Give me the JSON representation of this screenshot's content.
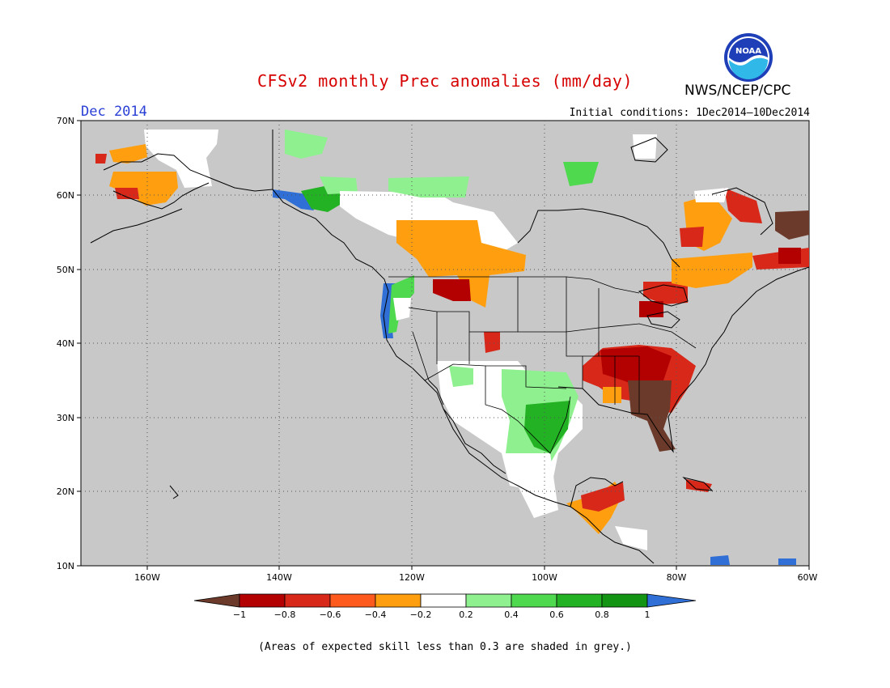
{
  "header": {
    "title": "CFSv2 monthly Prec anomalies (mm/day)",
    "month": "Dec 2014",
    "agency": "NWS/NCEP/CPC",
    "initial_conditions": "Initial conditions: 1Dec2014—10Dec2014",
    "logo_text": "NOAA"
  },
  "map": {
    "lon_range": [
      -170,
      -60
    ],
    "lat_range": [
      10,
      70
    ],
    "lat_ticks": [
      "70N",
      "60N",
      "50N",
      "40N",
      "30N",
      "20N",
      "10N"
    ],
    "lon_ticks": [
      "160W",
      "140W",
      "120W",
      "100W",
      "80W",
      "60W"
    ],
    "background_color": "#c8c8c8",
    "land_line_color": "#000000"
  },
  "colorbar": {
    "labels": [
      "−1",
      "−0.8",
      "−0.6",
      "−0.4",
      "−0.2",
      "0.2",
      "0.4",
      "0.6",
      "0.8",
      "1"
    ],
    "colors": [
      "#6b3a2a",
      "#b30000",
      "#d7281a",
      "#ff5a1e",
      "#ff9f0f",
      "#ffffff",
      "#8ff08f",
      "#4fd94f",
      "#23b223",
      "#139413",
      "#2f6fd6"
    ]
  },
  "footnote": "(Areas of expected skill less than 0.3 are shaded in grey.)"
}
